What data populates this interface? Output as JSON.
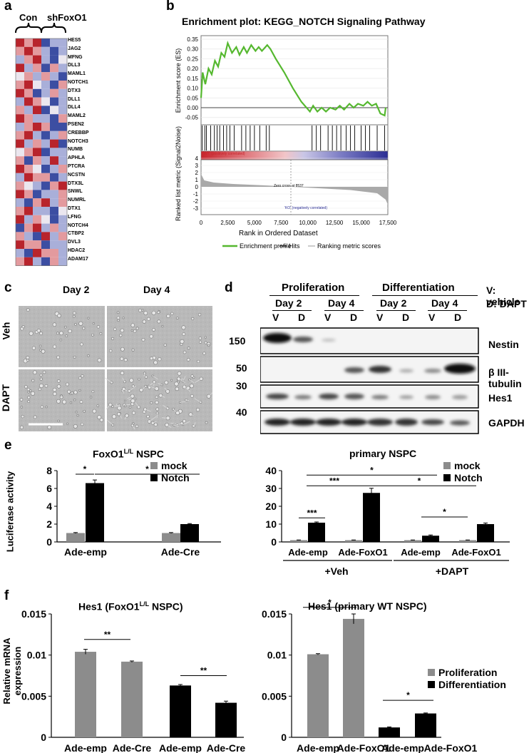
{
  "panel_letters": {
    "a": "a",
    "b": "b",
    "c": "c",
    "d": "d",
    "e": "e",
    "f": "f"
  },
  "panel_a": {
    "group_con": "Con",
    "group_sh": "shFoxO1",
    "genes": [
      "HES5",
      "JAG2",
      "MFNG",
      "DLL3",
      "MAML1",
      "NOTCH1",
      "DTX3",
      "DLL1",
      "DLL4",
      "MAML2",
      "PSEN2",
      "CREBBP",
      "NOTCH3",
      "NUMB",
      "APHLA",
      "PTCRA",
      "NCSTN",
      "DTX3L",
      "SNWL",
      "NUMRL",
      "DTX1",
      "LFNG",
      "NOTCH4",
      "CTBP2",
      "DVL3",
      "HDAC2",
      "ADAM17"
    ],
    "heatmap": [
      [
        2,
        1,
        2,
        -2,
        -1,
        -1
      ],
      [
        1,
        2,
        1,
        -1,
        -2,
        -1
      ],
      [
        -1,
        1,
        2,
        -1,
        -2,
        0
      ],
      [
        2,
        -1,
        1,
        -2,
        1,
        -1
      ],
      [
        0,
        1,
        -1,
        1,
        -1,
        -2
      ],
      [
        1,
        2,
        0,
        -1,
        -2,
        1
      ],
      [
        2,
        1,
        -2,
        -1,
        1,
        -1
      ],
      [
        -1,
        2,
        1,
        0,
        -2,
        -1
      ],
      [
        1,
        -1,
        2,
        -2,
        0,
        -1
      ],
      [
        2,
        1,
        -1,
        -1,
        -2,
        1
      ],
      [
        -1,
        1,
        2,
        1,
        -2,
        -2
      ],
      [
        1,
        2,
        -1,
        -2,
        -1,
        1
      ],
      [
        2,
        -1,
        1,
        -1,
        2,
        -2
      ],
      [
        0,
        1,
        2,
        -2,
        -1,
        -1
      ],
      [
        1,
        -2,
        1,
        -1,
        2,
        -1
      ],
      [
        2,
        1,
        0,
        -2,
        -1,
        1
      ],
      [
        -1,
        2,
        1,
        1,
        -2,
        -1
      ],
      [
        1,
        0,
        -1,
        -2,
        1,
        2
      ],
      [
        2,
        1,
        -2,
        -1,
        -1,
        1
      ],
      [
        -1,
        -2,
        1,
        2,
        -1,
        1
      ],
      [
        1,
        2,
        -1,
        -1,
        -2,
        0
      ],
      [
        2,
        -1,
        1,
        0,
        -2,
        -1
      ],
      [
        -2,
        1,
        2,
        -1,
        1,
        -1
      ],
      [
        1,
        -1,
        -2,
        2,
        -1,
        1
      ],
      [
        2,
        1,
        1,
        -2,
        -1,
        -1
      ],
      [
        -1,
        -2,
        2,
        1,
        1,
        -1
      ],
      [
        1,
        2,
        -1,
        -2,
        1,
        -1
      ]
    ]
  },
  "panel_b": {
    "title": "Enrichment plot: KEGG_NOTCH Signaling Pathway",
    "es_ylabel": "Enrichment score (ES)",
    "rank_ylabel": "Ranked list metric (Signal2Noise)",
    "xlabel": "Rank in Ordered Dataset",
    "es_ticks": [
      "0.35",
      "0.30",
      "0.25",
      "0.20",
      "0.15",
      "0.10",
      "0.05",
      "0.00",
      "-0.05"
    ],
    "rank_ticks": [
      "4",
      "3",
      "2",
      "1",
      "0",
      "-1",
      "-2",
      "-3"
    ],
    "x_ticks": [
      "0",
      "2,500",
      "5,000",
      "7,500",
      "10,000",
      "12,500",
      "15,000",
      "17,500"
    ],
    "wt_label": "'WT' (positively correlated)",
    "ko_label": "'KO' (negatively correlated)",
    "zero_cross": "Zero cross at 8537",
    "legend": [
      "Enrichment profile",
      "Hits",
      "Ranking metric scores"
    ],
    "colors": {
      "es_line": "#55b82f"
    }
  },
  "panel_c": {
    "day2": "Day 2",
    "day4": "Day 4",
    "veh": "Veh",
    "dapt": "DAPT"
  },
  "panel_d": {
    "prolif": "Proliferation",
    "diff": "Differentiation",
    "days": [
      "Day 2",
      "Day 4",
      "Day 2",
      "Day 4"
    ],
    "lanes": [
      "V",
      "D",
      "V",
      "D",
      "V",
      "D",
      "V",
      "D"
    ],
    "legend_v": "V: vehicle",
    "legend_d": "D: DAPT",
    "markers": [
      "150",
      "50",
      "30",
      "40"
    ],
    "proteins": [
      "Nestin",
      "β III-tubulin",
      "Hes1",
      "GAPDH"
    ]
  },
  "chart_data": [
    {
      "type": "bar",
      "title": "FoxO1L/L NSPC",
      "ylabel": "Luciferase activity",
      "ylim": [
        0,
        8
      ],
      "yticks": [
        "0",
        "2",
        "4",
        "6",
        "8"
      ],
      "categories": [
        "Ade-emp",
        "Ade-Cre"
      ],
      "series": [
        {
          "name": "mock",
          "values": [
            1.0,
            1.0
          ]
        },
        {
          "name": "Notch",
          "values": [
            6.6,
            2.0
          ]
        }
      ],
      "significance": [
        "*",
        "*"
      ]
    },
    {
      "type": "bar",
      "title": "primary NSPC",
      "ylim": [
        0,
        40
      ],
      "yticks": [
        "0",
        "10",
        "20",
        "30",
        "40"
      ],
      "categories": [
        "Ade-emp",
        "Ade-FoxO1",
        "Ade-emp",
        "Ade-FoxO1"
      ],
      "groups": [
        "+Veh",
        "+DAPT"
      ],
      "series": [
        {
          "name": "mock",
          "values": [
            1.0,
            1.0,
            1.0,
            1.0
          ]
        },
        {
          "name": "Notch",
          "values": [
            10.8,
            27.5,
            3.5,
            10.0
          ]
        }
      ],
      "significance": [
        "***",
        "*",
        "***",
        "*",
        "*"
      ]
    },
    {
      "type": "bar",
      "title": "Hes1 (FoxO1L/L NSPC)",
      "ylabel": "Relative mRNA expression",
      "ylim": [
        0,
        0.015
      ],
      "yticks": [
        "0",
        "0.005",
        "0.01",
        "0.015"
      ],
      "categories": [
        "Ade-emp",
        "Ade-Cre",
        "Ade-emp",
        "Ade-Cre"
      ],
      "values": [
        0.0104,
        0.0092,
        0.0063,
        0.0042
      ],
      "series_of_bar": [
        "Proliferation",
        "Proliferation",
        "Differentiation",
        "Differentiation"
      ],
      "significance": [
        "**",
        "**"
      ]
    },
    {
      "type": "bar",
      "title": "Hes1 (primary WT NSPC)",
      "ylim": [
        0,
        0.015
      ],
      "yticks": [
        "0",
        "0.005",
        "0.01",
        "0.015"
      ],
      "categories": [
        "Ade-emp",
        "Ade-FoxO1",
        "Ade-emp",
        "Ade-FoxO1"
      ],
      "values": [
        0.0101,
        0.0144,
        0.0012,
        0.0029
      ],
      "series_of_bar": [
        "Proliferation",
        "Proliferation",
        "Differentiation",
        "Differentiation"
      ],
      "legend": [
        "Proliferation",
        "Differentiation"
      ],
      "significance": [
        "*",
        "*"
      ]
    }
  ],
  "panel_e_title1_main": "FoxO1",
  "panel_e_title1_sup": "L/L",
  "panel_e_title1_rest": " NSPC",
  "panel_f_title1_main": "Hes1 (FoxO1",
  "panel_f_title1_sup": "L/L",
  "panel_f_title1_rest": " NSPC)",
  "colors": {
    "grey": "#8c8c8c",
    "black": "#000000",
    "heat_red": "#c0392b",
    "heat_blue": "#3a4fa3"
  }
}
